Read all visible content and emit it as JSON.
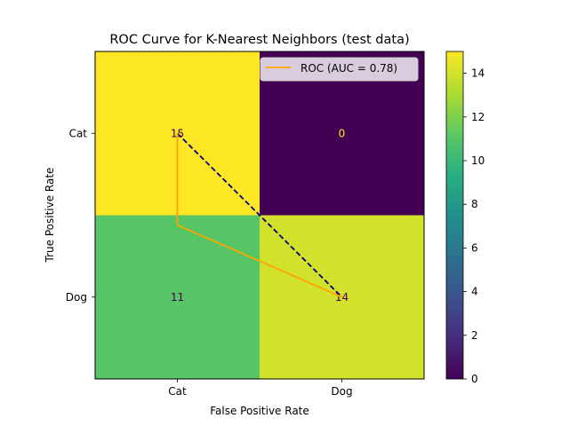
{
  "chart_data": {
    "type": "heatmap",
    "title": "ROC Curve for K-Nearest Neighbors (test data)",
    "xlabel": "False Positive Rate",
    "ylabel": "True Positive Rate",
    "x_categories": [
      "Cat",
      "Dog"
    ],
    "y_categories": [
      "Cat",
      "Dog"
    ],
    "matrix": [
      [
        15,
        0
      ],
      [
        11,
        14
      ]
    ],
    "cell_text_colors": [
      [
        "#440154",
        "#fde725"
      ],
      [
        "#440154",
        "#440154"
      ]
    ],
    "colormap": "viridis",
    "colorbar": {
      "min": 0,
      "max": 15,
      "ticks": [
        "0",
        "2",
        "4",
        "6",
        "8",
        "10",
        "12",
        "14"
      ],
      "stops": [
        "#440154",
        "#472d7b",
        "#3b528b",
        "#2c728e",
        "#21918c",
        "#28ae80",
        "#5ec962",
        "#addc30",
        "#fde725"
      ]
    },
    "roc_curve": {
      "name": "ROC (AUC = 0.78)",
      "color": "#ffa500",
      "x": [
        0,
        0,
        1
      ],
      "y": [
        0,
        0.56,
        1
      ]
    },
    "diagonal": {
      "color": "#000080",
      "style": "dashed",
      "x": [
        0,
        1
      ],
      "y": [
        0,
        1
      ]
    },
    "legend": {
      "position": "top-right"
    }
  }
}
